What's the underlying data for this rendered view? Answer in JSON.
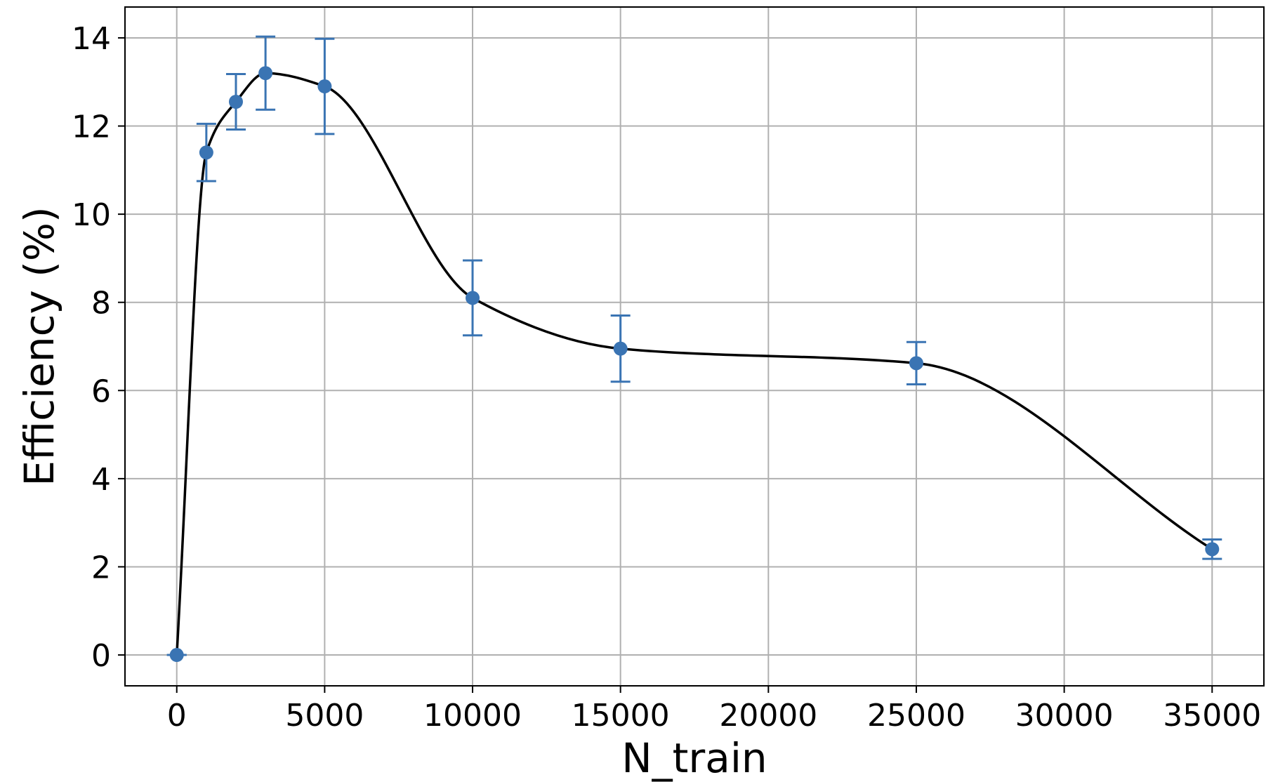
{
  "chart_data": {
    "type": "line",
    "title": "",
    "xlabel": "N_train",
    "ylabel": "Efficiency (%)",
    "xlim": [
      -1750,
      36750
    ],
    "ylim": [
      -0.7,
      14.7
    ],
    "x_ticks": [
      0,
      5000,
      10000,
      15000,
      20000,
      25000,
      30000,
      35000
    ],
    "x_tick_labels": [
      "0",
      "5000",
      "10000",
      "15000",
      "20000",
      "25000",
      "30000",
      "35000"
    ],
    "y_ticks": [
      0,
      2,
      4,
      6,
      8,
      10,
      12,
      14
    ],
    "y_tick_labels": [
      "0",
      "2",
      "4",
      "6",
      "8",
      "10",
      "12",
      "14"
    ],
    "grid": true,
    "legend": "none",
    "series": [
      {
        "x": [
          0,
          1000,
          2000,
          3000,
          5000,
          10000,
          15000,
          25000,
          35000
        ],
        "y": [
          0.0,
          11.4,
          12.55,
          13.2,
          12.9,
          8.1,
          6.95,
          6.62,
          2.4
        ],
        "y_err": [
          0.0,
          0.65,
          0.63,
          0.83,
          1.08,
          0.85,
          0.75,
          0.48,
          0.22
        ],
        "color": "#3a74b3",
        "marker": "circle",
        "smooth_curve": true,
        "curve_color": "#000000"
      }
    ]
  }
}
